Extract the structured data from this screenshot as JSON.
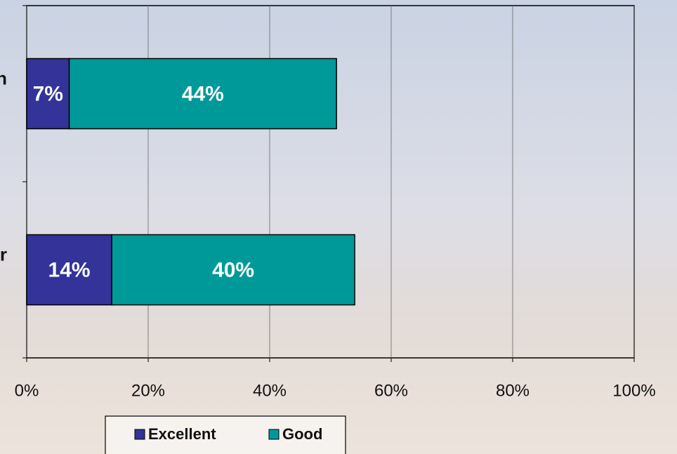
{
  "chart_data": {
    "type": "stacked-bar-horizontal",
    "categories": [
      "n",
      "r"
    ],
    "series": [
      {
        "name": "Excellent",
        "color": "#333399",
        "values": [
          7,
          14
        ],
        "value_labels": [
          "7%",
          "14%"
        ]
      },
      {
        "name": "Good",
        "color": "#009999",
        "values": [
          44,
          40
        ],
        "value_labels": [
          "44%",
          "40%"
        ]
      }
    ],
    "xlim": [
      0,
      100
    ],
    "xticks": [
      {
        "value": 0,
        "label": "0%"
      },
      {
        "value": 20,
        "label": "20%"
      },
      {
        "value": 40,
        "label": "40%"
      },
      {
        "value": 60,
        "label": "60%"
      },
      {
        "value": 80,
        "label": "80%"
      },
      {
        "value": 100,
        "label": "100%"
      }
    ],
    "grid": true,
    "legend": "bottom"
  }
}
